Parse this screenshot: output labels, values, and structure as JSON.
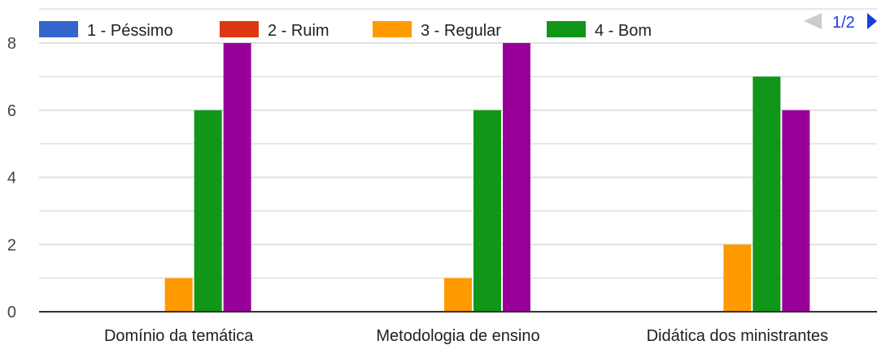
{
  "chart_data": {
    "type": "bar",
    "categories": [
      "Domínio da temática",
      "Metodologia de ensino",
      "Didática dos ministrantes"
    ],
    "series": [
      {
        "name": "1 - Péssimo",
        "color": "#3366cc",
        "values": [
          0,
          0,
          0
        ]
      },
      {
        "name": "2 - Ruim",
        "color": "#dc3912",
        "values": [
          0,
          0,
          0
        ]
      },
      {
        "name": "3 - Regular",
        "color": "#ff9900",
        "values": [
          1,
          1,
          2
        ]
      },
      {
        "name": "4 - Bom",
        "color": "#109618",
        "values": [
          6,
          6,
          7
        ]
      },
      {
        "color": "#990099",
        "values": [
          8,
          8,
          6
        ]
      }
    ],
    "ylim": [
      0,
      8
    ],
    "yticks": [
      0,
      2,
      4,
      6,
      8
    ],
    "grid": true,
    "legend": {
      "position": "top",
      "page": "1/2"
    }
  }
}
